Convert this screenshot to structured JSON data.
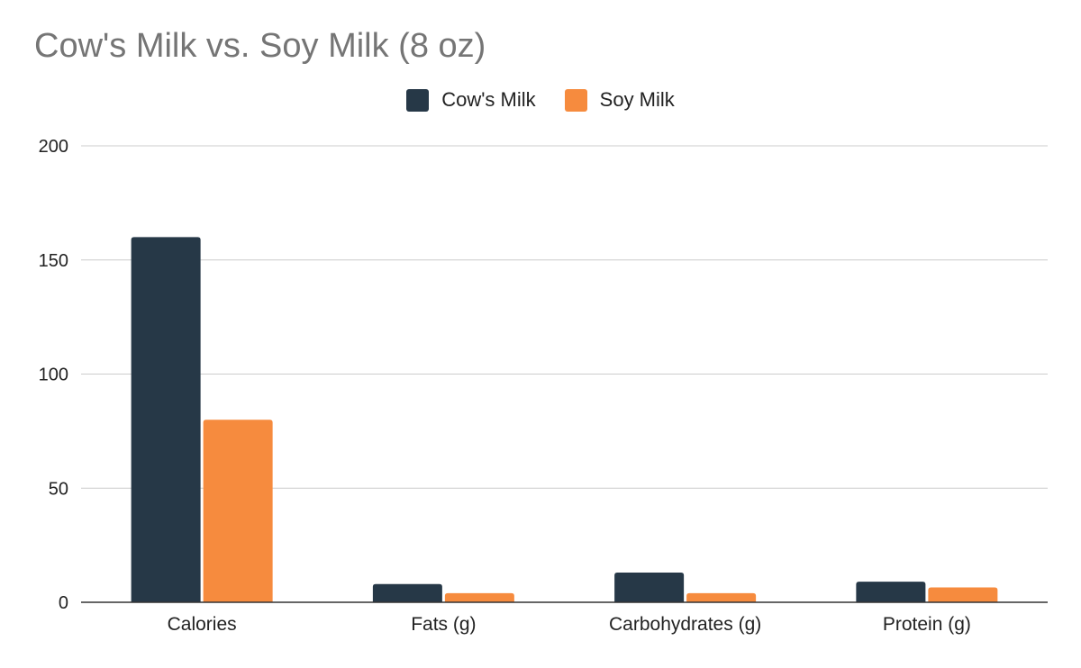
{
  "chart_data": {
    "type": "bar",
    "title": "Cow's Milk vs. Soy Milk (8 oz)",
    "categories": [
      "Calories",
      "Fats (g)",
      "Carbohydrates (g)",
      "Protein (g)"
    ],
    "series": [
      {
        "name": "Cow's Milk",
        "color": "#263847",
        "values": [
          160,
          8,
          13,
          9
        ]
      },
      {
        "name": "Soy Milk",
        "color": "#f68b3e",
        "values": [
          80,
          4,
          4,
          6.5
        ]
      }
    ],
    "ylim": [
      0,
      200
    ],
    "yticks": [
      0,
      50,
      100,
      150,
      200
    ],
    "grid": true,
    "legend_position": "top-center"
  }
}
